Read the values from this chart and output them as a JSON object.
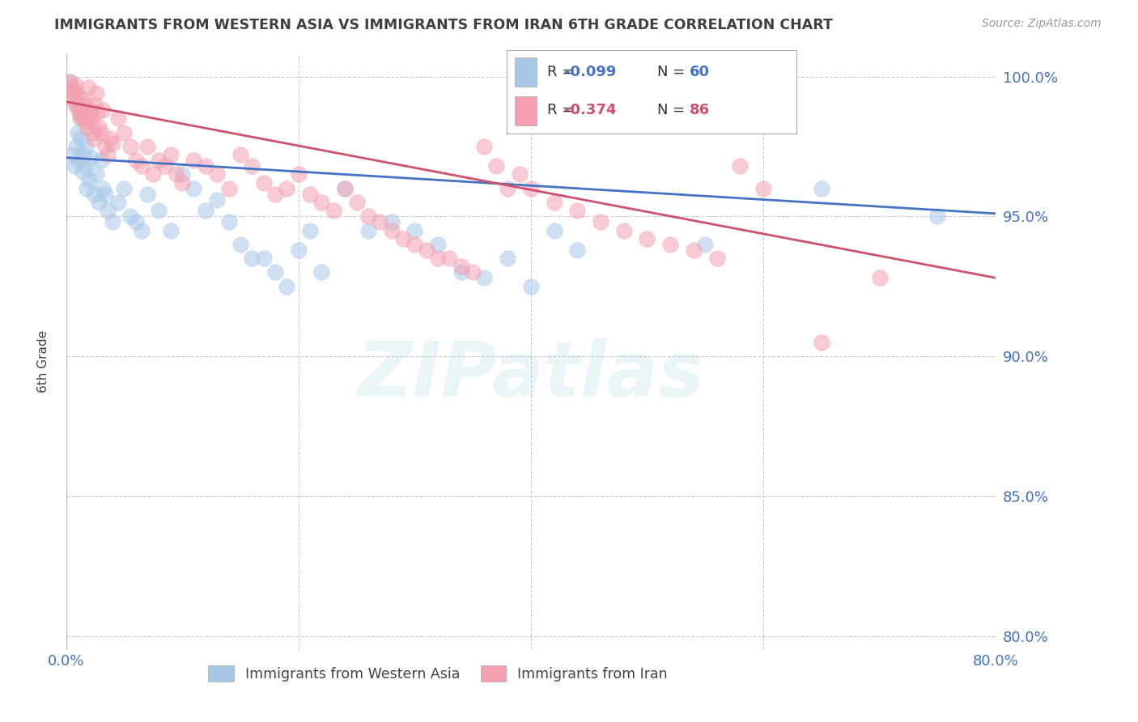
{
  "title": "IMMIGRANTS FROM WESTERN ASIA VS IMMIGRANTS FROM IRAN 6TH GRADE CORRELATION CHART",
  "source": "Source: ZipAtlas.com",
  "ylabel": "6th Grade",
  "xlim": [
    0.0,
    0.8
  ],
  "ylim": [
    0.795,
    1.008
  ],
  "yticks": [
    0.8,
    0.85,
    0.9,
    0.95,
    1.0
  ],
  "ytick_labels": [
    "80.0%",
    "85.0%",
    "90.0%",
    "95.0%",
    "100.0%"
  ],
  "xticks": [
    0.0,
    0.2,
    0.4,
    0.6,
    0.8
  ],
  "xtick_labels": [
    "0.0%",
    "",
    "",
    "",
    "80.0%"
  ],
  "blue_R": -0.099,
  "blue_N": 60,
  "pink_R": -0.374,
  "pink_N": 86,
  "blue_scatter_color": "#a8c8e8",
  "blue_line_color": "#4472c4",
  "pink_scatter_color": "#f4a0b0",
  "pink_line_color": "#d05070",
  "background_color": "#ffffff",
  "grid_color": "#cccccc",
  "axis_color": "#4472c4",
  "title_color": "#404040",
  "blue_line_y0": 0.971,
  "blue_line_y1": 0.951,
  "pink_line_y0": 0.991,
  "pink_line_y1": 0.928,
  "blue_x": [
    0.003,
    0.005,
    0.006,
    0.007,
    0.008,
    0.009,
    0.01,
    0.011,
    0.012,
    0.013,
    0.014,
    0.015,
    0.016,
    0.017,
    0.018,
    0.02,
    0.022,
    0.024,
    0.026,
    0.028,
    0.03,
    0.032,
    0.034,
    0.036,
    0.04,
    0.045,
    0.05,
    0.055,
    0.06,
    0.065,
    0.07,
    0.08,
    0.09,
    0.1,
    0.11,
    0.12,
    0.13,
    0.14,
    0.15,
    0.16,
    0.17,
    0.18,
    0.19,
    0.2,
    0.21,
    0.22,
    0.24,
    0.26,
    0.28,
    0.3,
    0.32,
    0.34,
    0.36,
    0.38,
    0.4,
    0.42,
    0.44,
    0.55,
    0.65,
    0.75
  ],
  "blue_y": [
    0.998,
    0.995,
    0.972,
    0.968,
    0.99,
    0.975,
    0.98,
    0.97,
    0.985,
    0.978,
    0.966,
    0.972,
    0.968,
    0.975,
    0.96,
    0.963,
    0.971,
    0.958,
    0.965,
    0.955,
    0.97,
    0.96,
    0.958,
    0.952,
    0.948,
    0.955,
    0.96,
    0.95,
    0.948,
    0.945,
    0.958,
    0.952,
    0.945,
    0.965,
    0.96,
    0.952,
    0.956,
    0.948,
    0.94,
    0.935,
    0.935,
    0.93,
    0.925,
    0.938,
    0.945,
    0.93,
    0.96,
    0.945,
    0.948,
    0.945,
    0.94,
    0.93,
    0.928,
    0.935,
    0.925,
    0.945,
    0.938,
    0.94,
    0.96,
    0.95
  ],
  "pink_x": [
    0.003,
    0.004,
    0.005,
    0.006,
    0.007,
    0.008,
    0.009,
    0.01,
    0.011,
    0.012,
    0.013,
    0.014,
    0.015,
    0.016,
    0.017,
    0.018,
    0.019,
    0.02,
    0.021,
    0.022,
    0.023,
    0.024,
    0.025,
    0.026,
    0.027,
    0.028,
    0.03,
    0.032,
    0.034,
    0.036,
    0.038,
    0.04,
    0.045,
    0.05,
    0.055,
    0.06,
    0.065,
    0.07,
    0.075,
    0.08,
    0.085,
    0.09,
    0.095,
    0.1,
    0.11,
    0.12,
    0.13,
    0.14,
    0.15,
    0.16,
    0.17,
    0.18,
    0.19,
    0.2,
    0.21,
    0.22,
    0.23,
    0.24,
    0.25,
    0.26,
    0.27,
    0.28,
    0.29,
    0.3,
    0.31,
    0.32,
    0.33,
    0.34,
    0.35,
    0.36,
    0.37,
    0.38,
    0.39,
    0.4,
    0.42,
    0.44,
    0.46,
    0.48,
    0.5,
    0.52,
    0.54,
    0.56,
    0.58,
    0.6,
    0.65,
    0.7
  ],
  "pink_y": [
    0.998,
    0.996,
    0.994,
    0.992,
    0.995,
    0.997,
    0.99,
    0.993,
    0.988,
    0.986,
    0.992,
    0.985,
    0.988,
    0.99,
    0.984,
    0.982,
    0.996,
    0.988,
    0.986,
    0.984,
    0.98,
    0.978,
    0.99,
    0.994,
    0.987,
    0.982,
    0.98,
    0.988,
    0.975,
    0.972,
    0.978,
    0.976,
    0.985,
    0.98,
    0.975,
    0.97,
    0.968,
    0.975,
    0.965,
    0.97,
    0.968,
    0.972,
    0.965,
    0.962,
    0.97,
    0.968,
    0.965,
    0.96,
    0.972,
    0.968,
    0.962,
    0.958,
    0.96,
    0.965,
    0.958,
    0.955,
    0.952,
    0.96,
    0.955,
    0.95,
    0.948,
    0.945,
    0.942,
    0.94,
    0.938,
    0.935,
    0.935,
    0.932,
    0.93,
    0.975,
    0.968,
    0.96,
    0.965,
    0.96,
    0.955,
    0.952,
    0.948,
    0.945,
    0.942,
    0.94,
    0.938,
    0.935,
    0.968,
    0.96,
    0.905,
    0.928
  ]
}
